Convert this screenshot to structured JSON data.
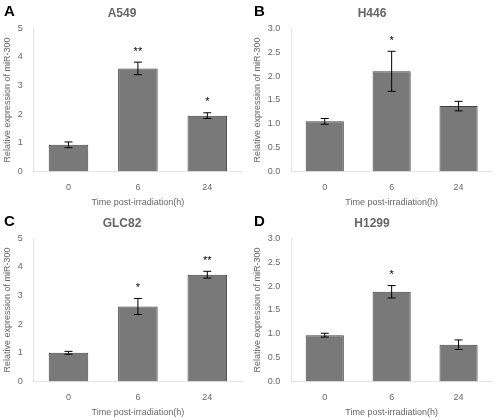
{
  "chart_data": [
    {
      "type": "bar",
      "panel_label": "A",
      "title": "A549",
      "categories": [
        "0",
        "6",
        "24"
      ],
      "values": [
        0.93,
        3.6,
        1.95
      ],
      "errors": [
        0.1,
        0.22,
        0.1
      ],
      "annotations": [
        {
          "x": "6",
          "text": "**"
        },
        {
          "x": "24",
          "text": "*"
        }
      ],
      "color": "#797979",
      "xlabel": "Time post-irradiation(h)",
      "ylabel": "Relative expression of miR-300",
      "ylim": [
        0,
        5
      ],
      "yticks": [
        0,
        1,
        2,
        3,
        4,
        5
      ],
      "grid": false
    },
    {
      "type": "bar",
      "panel_label": "B",
      "title": "H446",
      "categories": [
        "0",
        "6",
        "24"
      ],
      "values": [
        1.05,
        2.1,
        1.37
      ],
      "errors": [
        0.06,
        0.42,
        0.1
      ],
      "annotations": [
        {
          "x": "6",
          "text": "*"
        }
      ],
      "color": "#797979",
      "xlabel": "Time post-irradiation(h)",
      "ylabel": "Relative expression of miR-300",
      "ylim": [
        0,
        3.0
      ],
      "yticks": [
        {
          "value": 0,
          "label": "0.0"
        },
        0.5,
        {
          "value": 1,
          "label": "1.0"
        },
        1.5,
        {
          "value": 2,
          "label": "2.0"
        },
        2.5,
        {
          "value": 3,
          "label": "3.0"
        }
      ],
      "grid": false
    },
    {
      "type": "bar",
      "panel_label": "C",
      "title": "GLC82",
      "categories": [
        "0",
        "6",
        "24"
      ],
      "values": [
        1.0,
        2.62,
        3.73
      ],
      "errors": [
        0.05,
        0.28,
        0.12
      ],
      "annotations": [
        {
          "x": "6",
          "text": "*"
        },
        {
          "x": "24",
          "text": "**"
        }
      ],
      "color": "#797979",
      "xlabel": "Time post-irradiation(h)",
      "ylabel": "Relative expression of miR-300",
      "ylim": [
        0,
        5
      ],
      "yticks": [
        0,
        1,
        2,
        3,
        4,
        5
      ],
      "grid": false
    },
    {
      "type": "bar",
      "panel_label": "D",
      "title": "H1299",
      "categories": [
        "0",
        "6",
        "24"
      ],
      "values": [
        0.97,
        1.88,
        0.77
      ],
      "errors": [
        0.04,
        0.13,
        0.1
      ],
      "annotations": [
        {
          "x": "6",
          "text": "*"
        }
      ],
      "color": "#797979",
      "xlabel": "Time post-irradiation(h)",
      "ylabel": "Relative expression of miR-300",
      "ylim": [
        0,
        3.0
      ],
      "yticks": [
        {
          "value": 0,
          "label": "0.0"
        },
        0.5,
        {
          "value": 1,
          "label": "1.0"
        },
        1.5,
        {
          "value": 2,
          "label": "2.0"
        },
        2.5,
        {
          "value": 3,
          "label": "3.0"
        }
      ],
      "grid": false
    }
  ]
}
